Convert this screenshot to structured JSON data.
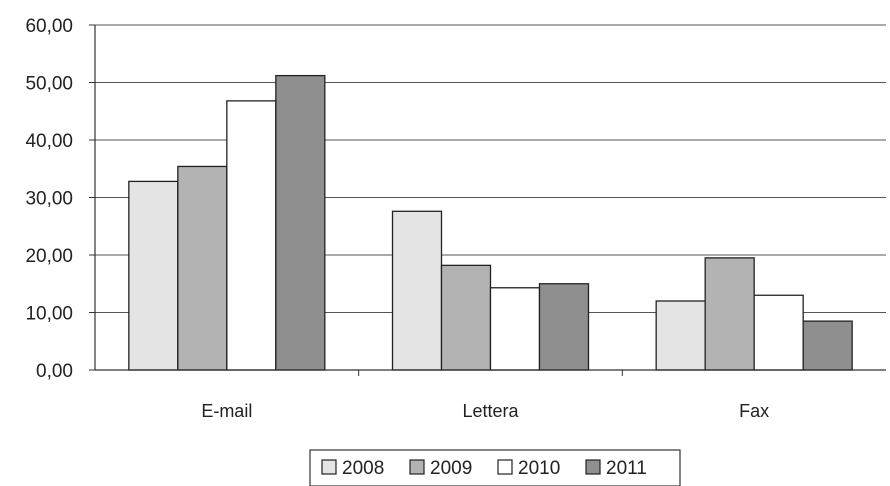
{
  "chart_data": {
    "type": "bar",
    "categories": [
      "E-mail",
      "Lettera",
      "Fax"
    ],
    "series": [
      {
        "name": "2008",
        "values": [
          32.8,
          27.6,
          12.0
        ],
        "color": "#e4e4e4"
      },
      {
        "name": "2009",
        "values": [
          35.4,
          18.2,
          19.5
        ],
        "color": "#b3b3b3"
      },
      {
        "name": "2010",
        "values": [
          46.8,
          14.3,
          13.0
        ],
        "color": "#ffffff"
      },
      {
        "name": "2011",
        "values": [
          51.2,
          15.0,
          8.5
        ],
        "color": "#8f8f8f"
      }
    ],
    "ylim": [
      0,
      60
    ],
    "yticks": [
      "0,00",
      "10,00",
      "20,00",
      "30,00",
      "40,00",
      "50,00",
      "60,00"
    ],
    "grid": true,
    "legend_position": "bottom"
  }
}
